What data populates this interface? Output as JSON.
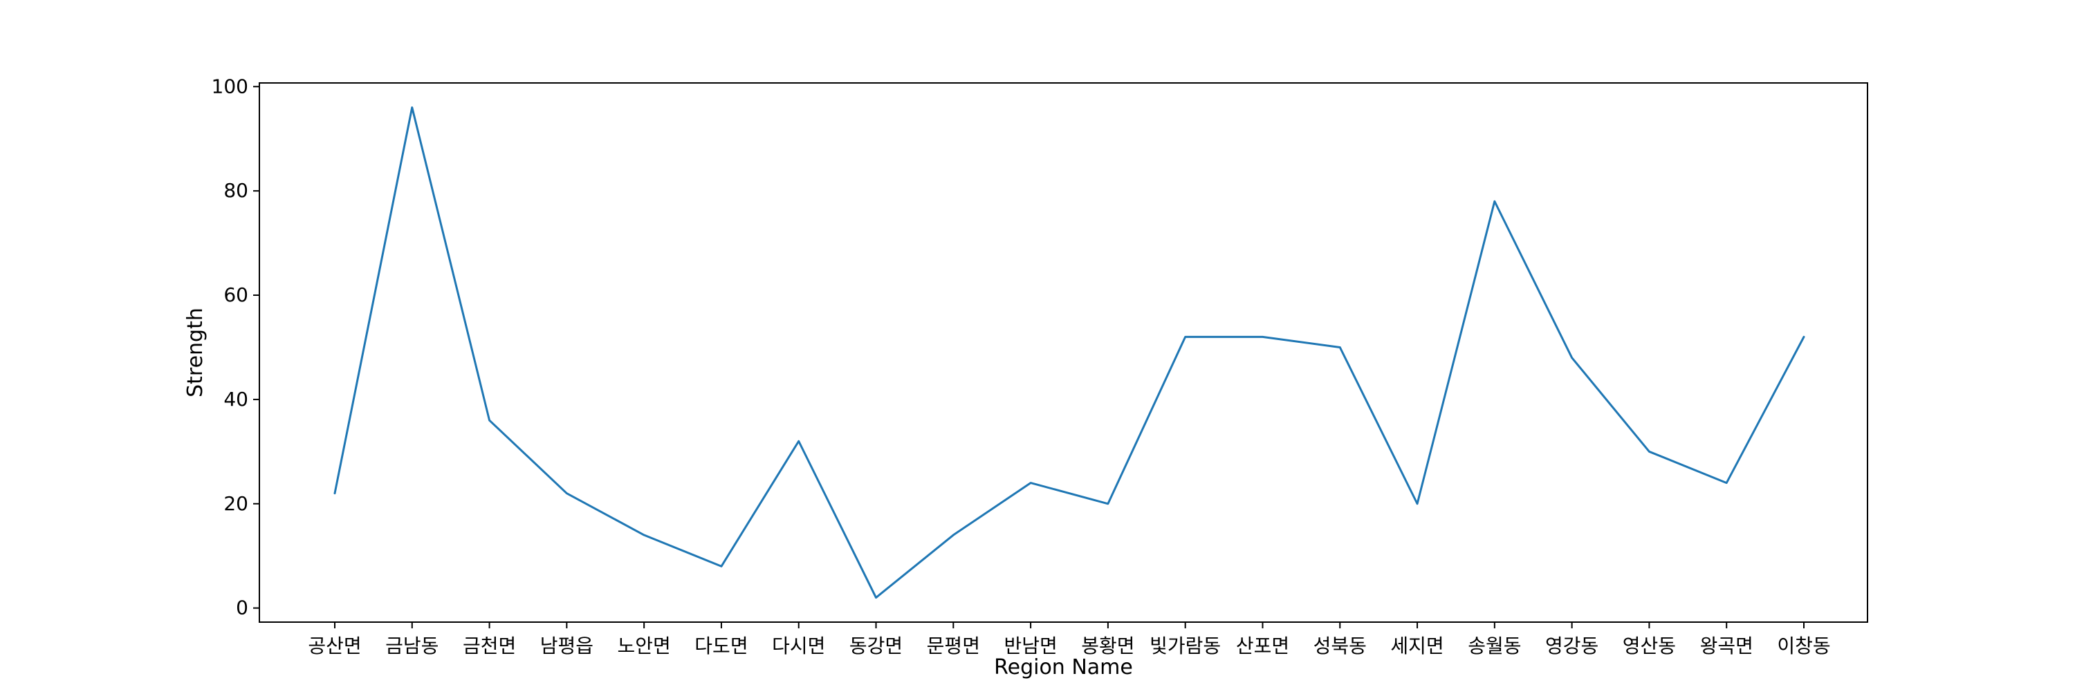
{
  "chart_data": {
    "type": "line",
    "title": "",
    "xlabel": "Region Name",
    "ylabel": "Strength",
    "categories": [
      "공산면",
      "금남동",
      "금천면",
      "남평읍",
      "노안면",
      "다도면",
      "다시면",
      "동강면",
      "문평면",
      "반남면",
      "봉황면",
      "빛가람동",
      "산포면",
      "성북동",
      "세지면",
      "송월동",
      "영강동",
      "영산동",
      "왕곡면",
      "이창동"
    ],
    "series": [
      {
        "values": [
          22,
          96,
          36,
          22,
          14,
          8,
          32,
          2,
          14,
          24,
          20,
          52,
          52,
          50,
          20,
          78,
          48,
          30,
          24,
          52
        ],
        "color": "#1f77b4"
      }
    ],
    "ylim": [
      -2.7,
      100.7
    ],
    "yticks": [
      0,
      20,
      40,
      60,
      80,
      100
    ],
    "grid": false,
    "legend": "none"
  }
}
